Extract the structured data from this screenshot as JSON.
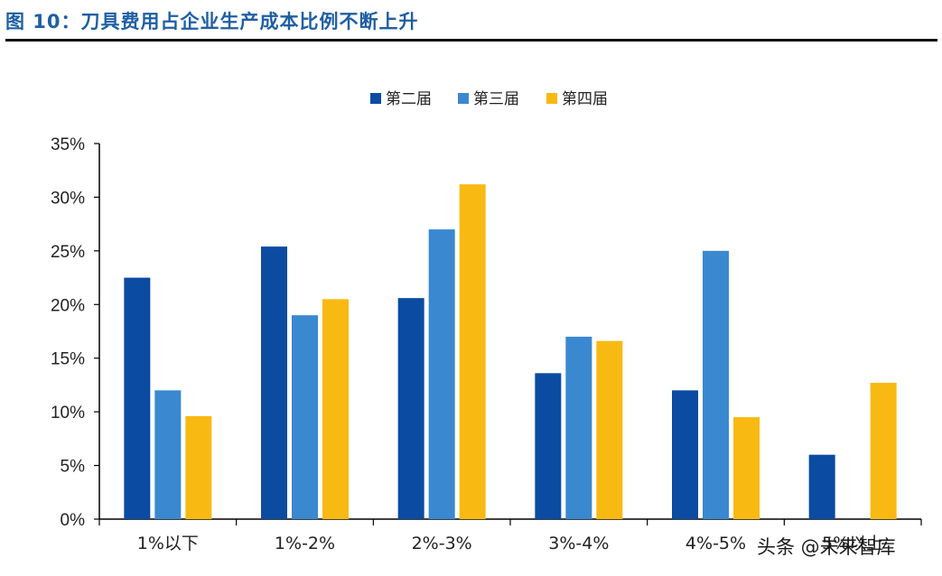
{
  "figure_title": "图 10：刀具费用占企业生产成本比例不断上升",
  "watermark": "头条 @未来智库",
  "chart_data": {
    "type": "bar",
    "title": "",
    "xlabel": "",
    "ylabel": "",
    "categories": [
      "1%以下",
      "1%-2%",
      "2%-3%",
      "3%-4%",
      "4%-5%",
      "5%以上"
    ],
    "series": [
      {
        "name": "第二届",
        "color": "#0b4ba1",
        "values": [
          22.5,
          25.4,
          20.6,
          13.6,
          12.0,
          6.0
        ]
      },
      {
        "name": "第三届",
        "color": "#3a88d0",
        "values": [
          12.0,
          19.0,
          27.0,
          17.0,
          25.0,
          null
        ]
      },
      {
        "name": "第四届",
        "color": "#f8b912",
        "values": [
          9.6,
          20.5,
          31.2,
          16.6,
          9.5,
          12.7
        ]
      }
    ],
    "ylim": [
      0,
      35
    ],
    "yticks": [
      "0%",
      "5%",
      "10%",
      "15%",
      "20%",
      "25%",
      "30%",
      "35%"
    ],
    "grid": false,
    "legend": "top-center"
  }
}
